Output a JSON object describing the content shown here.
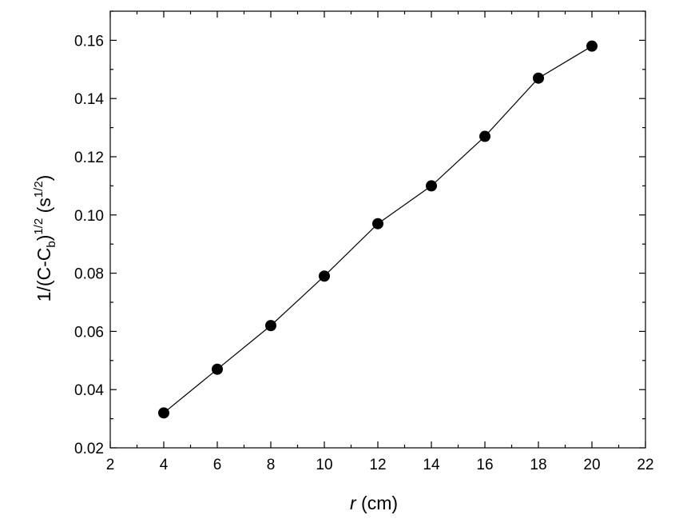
{
  "chart_data": {
    "type": "line",
    "markers": "filled-circle",
    "color": "#000000",
    "grid": false,
    "legend": "none",
    "xlabel": {
      "var": "r",
      "rest": " (cm)"
    },
    "ylabel": {
      "part1": "1/(C-C",
      "sub": "b",
      "part2": ")",
      "sup1": "1/2",
      "part3": " (s",
      "sup2": "1/2",
      "part4": ")"
    },
    "xlim": [
      2,
      22
    ],
    "ylim": [
      0.02,
      0.17
    ],
    "xticks": [
      2,
      4,
      6,
      8,
      10,
      12,
      14,
      16,
      18,
      20,
      22
    ],
    "xtick_labels": [
      "2",
      "4",
      "6",
      "8",
      "10",
      "12",
      "14",
      "16",
      "18",
      "20",
      "22"
    ],
    "yticks": [
      0.02,
      0.04,
      0.06,
      0.08,
      0.1,
      0.12,
      0.14,
      0.16
    ],
    "ytick_labels": [
      "0.02",
      "0.04",
      "0.06",
      "0.08",
      "0.10",
      "0.12",
      "0.14",
      "0.16"
    ],
    "x": [
      4,
      6,
      8,
      10,
      12,
      14,
      16,
      18,
      20
    ],
    "y": [
      0.032,
      0.047,
      0.062,
      0.079,
      0.097,
      0.11,
      0.127,
      0.147,
      0.158
    ]
  }
}
